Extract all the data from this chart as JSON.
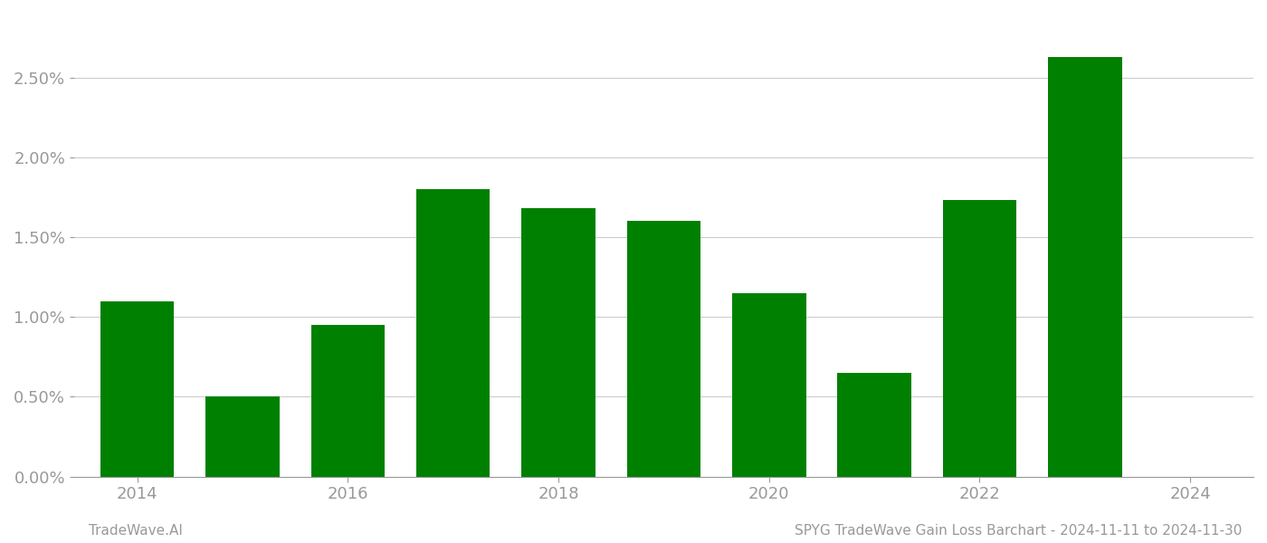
{
  "years": [
    2014,
    2015,
    2016,
    2017,
    2018,
    2019,
    2020,
    2021,
    2022,
    2023,
    2024
  ],
  "values": [
    0.011,
    0.005,
    0.0095,
    0.018,
    0.0168,
    0.016,
    0.0115,
    0.0065,
    0.0173,
    0.0263,
    0.0
  ],
  "bar_color": "#008000",
  "background_color": "#ffffff",
  "grid_color": "#cccccc",
  "axis_color": "#999999",
  "tick_color": "#999999",
  "ylim": [
    0,
    0.029
  ],
  "xlim": [
    2013.4,
    2024.6
  ],
  "bar_width": 0.7,
  "footer_left": "TradeWave.AI",
  "footer_right": "SPYG TradeWave Gain Loss Barchart - 2024-11-11 to 2024-11-30",
  "footer_fontsize": 11,
  "tick_fontsize": 13,
  "yticks": [
    0.0,
    0.005,
    0.01,
    0.015,
    0.02,
    0.025
  ],
  "ytick_labels": [
    "0.00%",
    "0.50%",
    "1.00%",
    "1.50%",
    "2.00%",
    "2.50%"
  ]
}
